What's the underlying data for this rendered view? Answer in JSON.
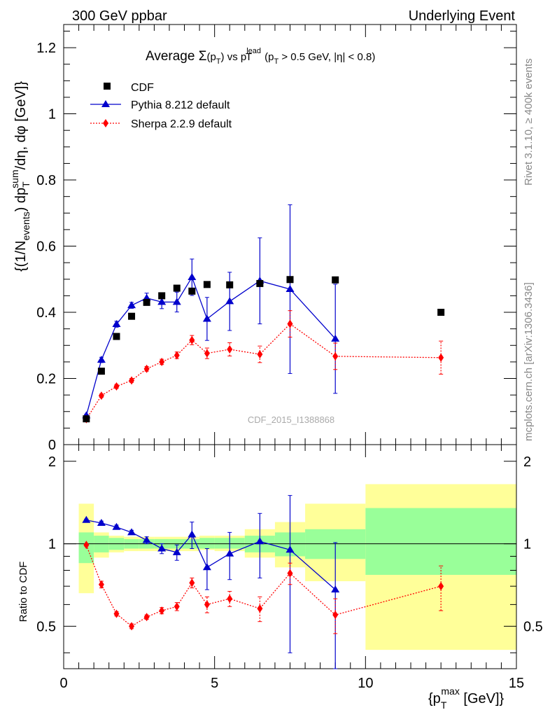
{
  "header": {
    "left": "300 GeV ppbar",
    "right": "Underlying Event"
  },
  "side_labels": {
    "rivet": "Rivet 3.1.10, ≥ 400k events",
    "mcplots": "mcplots.cern.ch [arXiv:1306.3436]"
  },
  "watermark": "CDF_2015_I1388868",
  "chart_data": {
    "type": "scatter",
    "title": "Average Σ(p_T) vs p_T^lead (p_T > 0.5 GeV, |η| < 0.8)",
    "title_parts": {
      "prefix": "Average ",
      "sigma": "Σ",
      "pt_open": "(p",
      "t": "T",
      "pt_close": ")",
      "vs": " vs p",
      "lead": "lead",
      "cut_open": " (p",
      "cut_text": " > 0.5 GeV, |η| < 0.8)"
    },
    "xlabel": "{p_T^max [GeV]}",
    "xlabel_parts": {
      "open": "{p",
      "sub": "T",
      "sup": "max",
      "close": " [GeV]}"
    },
    "ylabel": "{(1/N_events) dp_T^sum/dη, dφ [GeV]}",
    "ylabel_parts": {
      "a": "{(1/N",
      "b": "events",
      "c": ") dp",
      "d": "T",
      "e": "sum",
      "f": "/dη, dφ [GeV]}"
    },
    "ratio_ylabel": "Ratio to CDF",
    "xlim": [
      0,
      15
    ],
    "ylim": [
      0,
      1.27
    ],
    "ratio_ylim": [
      0.35,
      2.3
    ],
    "x_ticks": [
      "0",
      "5",
      "10",
      "15"
    ],
    "y_ticks": [
      "0",
      "0.2",
      "0.4",
      "0.6",
      "0.8",
      "1",
      "1.2"
    ],
    "ratio_ticks": [
      "0.5",
      "1",
      "2"
    ],
    "legend_position": "top-left",
    "series": [
      {
        "name": "CDF",
        "color": "#000000",
        "marker": "square",
        "x": [
          0.75,
          1.25,
          1.75,
          2.25,
          2.75,
          3.25,
          3.75,
          4.25,
          4.75,
          5.5,
          6.5,
          7.5,
          9.0,
          12.5
        ],
        "y": [
          0.078,
          0.222,
          0.327,
          0.388,
          0.43,
          0.45,
          0.473,
          0.464,
          0.484,
          0.483,
          0.487,
          0.499,
          0.498,
          0.4
        ]
      },
      {
        "name": "Pythia 8.212 default",
        "color": "#0000cc",
        "marker": "triangle",
        "line": "solid",
        "x": [
          0.75,
          1.25,
          1.75,
          2.25,
          2.75,
          3.25,
          3.75,
          4.25,
          4.75,
          5.5,
          6.5,
          7.5,
          9.0
        ],
        "y": [
          0.088,
          0.256,
          0.364,
          0.421,
          0.443,
          0.431,
          0.431,
          0.506,
          0.38,
          0.433,
          0.495,
          0.47,
          0.32
        ],
        "yerr": [
          0.004,
          0.008,
          0.009,
          0.009,
          0.015,
          0.02,
          0.03,
          0.055,
          0.065,
          0.088,
          0.13,
          0.255,
          0.165
        ],
        "ratio": [
          1.22,
          1.19,
          1.15,
          1.1,
          1.03,
          0.96,
          0.93,
          1.08,
          0.82,
          0.92,
          1.02,
          0.95,
          0.68
        ],
        "ratio_err": [
          0.01,
          0.02,
          0.02,
          0.02,
          0.03,
          0.04,
          0.06,
          0.12,
          0.14,
          0.18,
          0.27,
          0.55,
          0.33
        ]
      },
      {
        "name": "Sherpa 2.2.9 default",
        "color": "#ff0000",
        "marker": "diamond",
        "line": "dotted",
        "x": [
          0.75,
          1.25,
          1.75,
          2.25,
          2.75,
          3.25,
          3.75,
          4.25,
          4.75,
          5.5,
          6.5,
          7.5,
          9.0,
          12.5
        ],
        "y": [
          0.077,
          0.148,
          0.176,
          0.194,
          0.229,
          0.25,
          0.27,
          0.316,
          0.276,
          0.288,
          0.273,
          0.365,
          0.267,
          0.263
        ],
        "yerr": [
          0.003,
          0.005,
          0.006,
          0.006,
          0.007,
          0.008,
          0.01,
          0.014,
          0.016,
          0.02,
          0.025,
          0.04,
          0.04,
          0.05
        ],
        "ratio": [
          0.99,
          0.71,
          0.555,
          0.5,
          0.54,
          0.57,
          0.59,
          0.72,
          0.6,
          0.63,
          0.58,
          0.78,
          0.55,
          0.7
        ],
        "ratio_err": [
          0.01,
          0.02,
          0.01,
          0.01,
          0.01,
          0.015,
          0.02,
          0.03,
          0.04,
          0.04,
          0.06,
          0.07,
          0.08,
          0.13
        ]
      }
    ],
    "ratio_bands": {
      "stat_color": "#99ff99",
      "total_color": "#ffff99",
      "bins": [
        {
          "x0": 0.5,
          "x1": 1.0,
          "stat": [
            0.85,
            1.1
          ],
          "total": [
            0.66,
            1.4
          ]
        },
        {
          "x0": 1.0,
          "x1": 1.5,
          "stat": [
            0.93,
            1.07
          ],
          "total": [
            0.89,
            1.1
          ]
        },
        {
          "x0": 1.5,
          "x1": 2.0,
          "stat": [
            0.95,
            1.05
          ],
          "total": [
            0.93,
            1.07
          ]
        },
        {
          "x0": 2.0,
          "x1": 2.5,
          "stat": [
            0.96,
            1.04
          ],
          "total": [
            0.94,
            1.06
          ]
        },
        {
          "x0": 2.5,
          "x1": 3.0,
          "stat": [
            0.96,
            1.04
          ],
          "total": [
            0.94,
            1.06
          ]
        },
        {
          "x0": 3.0,
          "x1": 3.5,
          "stat": [
            0.96,
            1.04
          ],
          "total": [
            0.94,
            1.06
          ]
        },
        {
          "x0": 3.5,
          "x1": 4.0,
          "stat": [
            0.96,
            1.04
          ],
          "total": [
            0.94,
            1.06
          ]
        },
        {
          "x0": 4.0,
          "x1": 4.5,
          "stat": [
            0.96,
            1.04
          ],
          "total": [
            0.94,
            1.06
          ]
        },
        {
          "x0": 4.5,
          "x1": 5.0,
          "stat": [
            0.96,
            1.05
          ],
          "total": [
            0.95,
            1.07
          ]
        },
        {
          "x0": 5.0,
          "x1": 6.0,
          "stat": [
            0.96,
            1.05
          ],
          "total": [
            0.94,
            1.07
          ]
        },
        {
          "x0": 6.0,
          "x1": 7.0,
          "stat": [
            0.93,
            1.07
          ],
          "total": [
            0.89,
            1.13
          ]
        },
        {
          "x0": 7.0,
          "x1": 8.0,
          "stat": [
            0.9,
            1.1
          ],
          "total": [
            0.82,
            1.2
          ]
        },
        {
          "x0": 8.0,
          "x1": 10.0,
          "stat": [
            0.88,
            1.13
          ],
          "total": [
            0.73,
            1.4
          ]
        },
        {
          "x0": 10.0,
          "x1": 15.0,
          "stat": [
            0.77,
            1.35
          ],
          "total": [
            0.41,
            1.65
          ]
        }
      ]
    }
  }
}
